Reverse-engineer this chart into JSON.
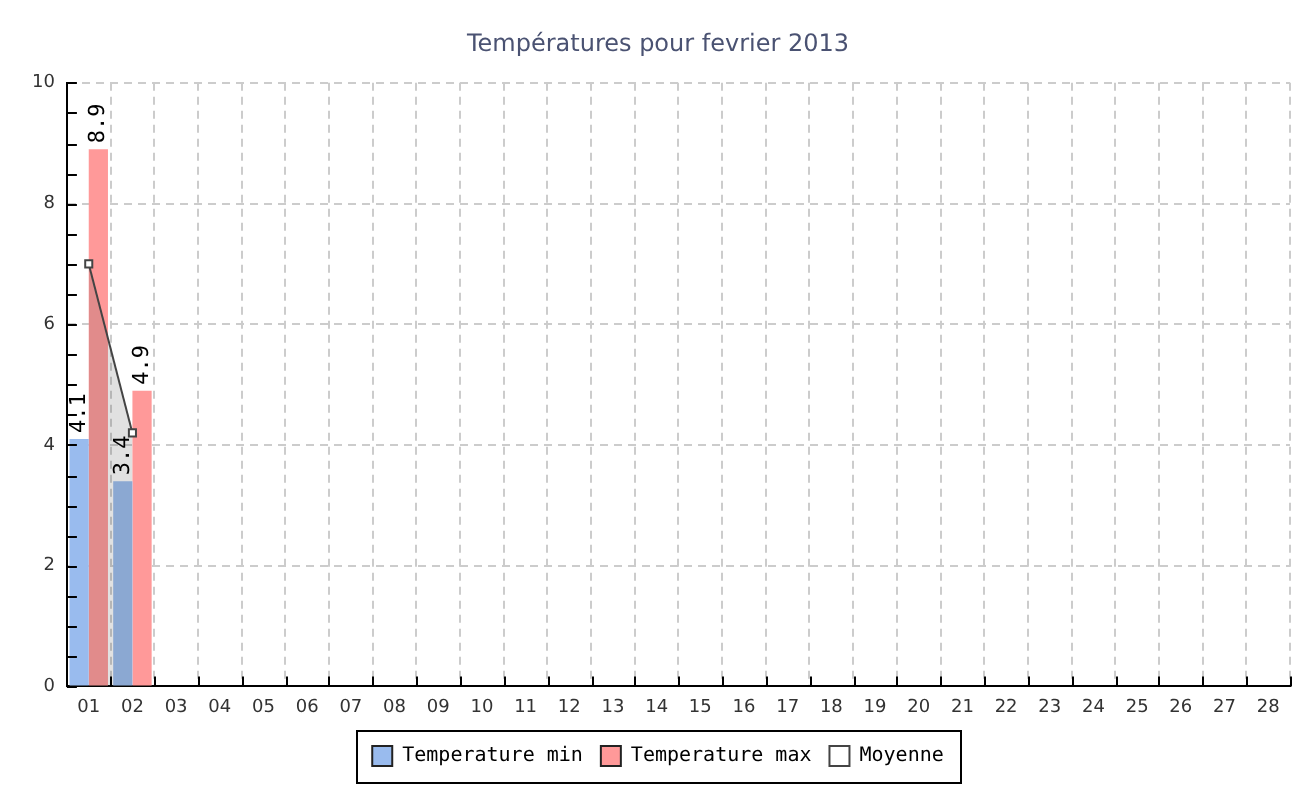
{
  "chart_data": {
    "type": "bar",
    "title": "Températures pour fevrier 2013",
    "categories": [
      "01",
      "02",
      "03",
      "04",
      "05",
      "06",
      "07",
      "08",
      "09",
      "10",
      "11",
      "12",
      "13",
      "14",
      "15",
      "16",
      "17",
      "18",
      "19",
      "20",
      "21",
      "22",
      "23",
      "24",
      "25",
      "26",
      "27",
      "28"
    ],
    "series": [
      {
        "name": "Temperature min",
        "color": "#99bbee",
        "values": [
          4.1,
          3.4,
          null,
          null,
          null,
          null,
          null,
          null,
          null,
          null,
          null,
          null,
          null,
          null,
          null,
          null,
          null,
          null,
          null,
          null,
          null,
          null,
          null,
          null,
          null,
          null,
          null,
          null
        ],
        "value_labels": [
          "4.1",
          "3.4",
          null,
          null,
          null,
          null,
          null,
          null,
          null,
          null,
          null,
          null,
          null,
          null,
          null,
          null,
          null,
          null,
          null,
          null,
          null,
          null,
          null,
          null,
          null,
          null,
          null,
          null
        ]
      },
      {
        "name": "Temperature max",
        "color": "#ff9999",
        "values": [
          8.9,
          4.9,
          null,
          null,
          null,
          null,
          null,
          null,
          null,
          null,
          null,
          null,
          null,
          null,
          null,
          null,
          null,
          null,
          null,
          null,
          null,
          null,
          null,
          null,
          null,
          null,
          null,
          null
        ],
        "value_labels": [
          "8.9",
          "4.9",
          null,
          null,
          null,
          null,
          null,
          null,
          null,
          null,
          null,
          null,
          null,
          null,
          null,
          null,
          null,
          null,
          null,
          null,
          null,
          null,
          null,
          null,
          null,
          null,
          null,
          null
        ]
      },
      {
        "name": "Moyenne",
        "type": "area",
        "color": "#444444",
        "values": [
          7.0,
          4.2,
          null,
          null,
          null,
          null,
          null,
          null,
          null,
          null,
          null,
          null,
          null,
          null,
          null,
          null,
          null,
          null,
          null,
          null,
          null,
          null,
          null,
          null,
          null,
          null,
          null,
          null
        ]
      }
    ],
    "ylim": [
      0,
      10
    ],
    "yticks": [
      0,
      {
        "value": 0.5,
        "label": null
      },
      {
        "value": 1,
        "label": null
      },
      {
        "value": 1.5,
        "label": null
      },
      2,
      {
        "value": 2.5,
        "label": null
      },
      {
        "value": 3,
        "label": null
      },
      {
        "value": 3.5,
        "label": null
      },
      4,
      {
        "value": 4.5,
        "label": null
      },
      {
        "value": 5,
        "label": null
      },
      {
        "value": 5.5,
        "label": null
      },
      6,
      {
        "value": 6.5,
        "label": null
      },
      {
        "value": 7,
        "label": null
      },
      {
        "value": 7.5,
        "label": null
      },
      8,
      {
        "value": 8.5,
        "label": null
      },
      {
        "value": 9,
        "label": null
      },
      {
        "value": 9.5,
        "label": null
      },
      10
    ],
    "grid": true,
    "legend": "bottom",
    "marker": "square"
  }
}
